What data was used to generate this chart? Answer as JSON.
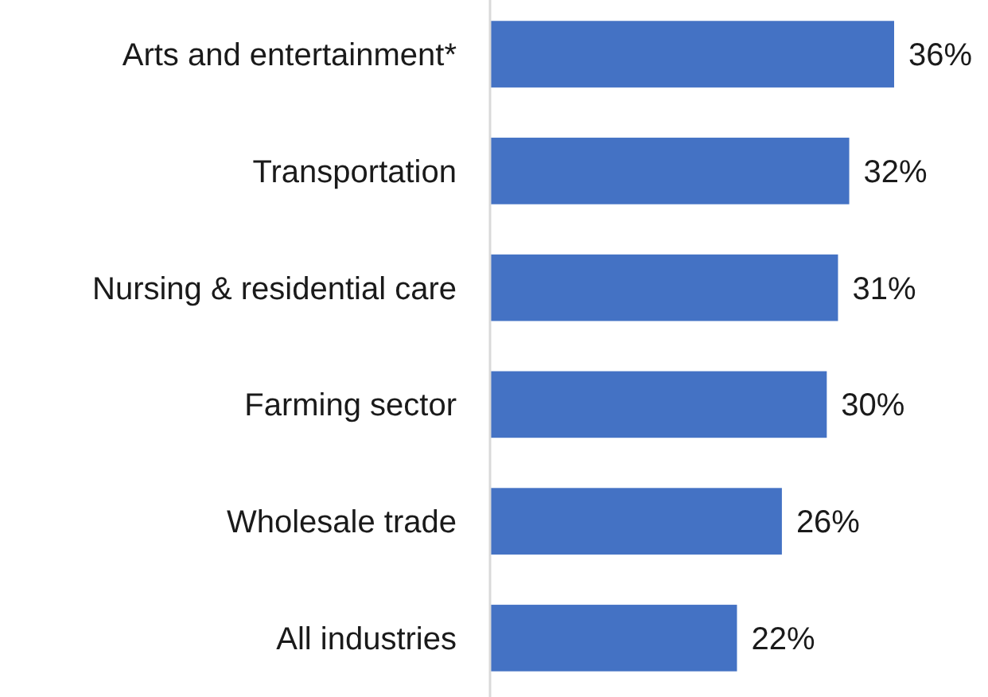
{
  "chart_data": {
    "type": "bar",
    "orientation": "horizontal",
    "categories": [
      "Arts and entertainment*",
      "Transportation",
      "Nursing & residential care",
      "Farming sector",
      "Wholesale trade",
      "All industries"
    ],
    "values": [
      36,
      32,
      31,
      30,
      26,
      22
    ],
    "color": "#4472c4",
    "value_labels": [
      "36%",
      "32%",
      "31%",
      "30%",
      "26%",
      "22%"
    ]
  }
}
